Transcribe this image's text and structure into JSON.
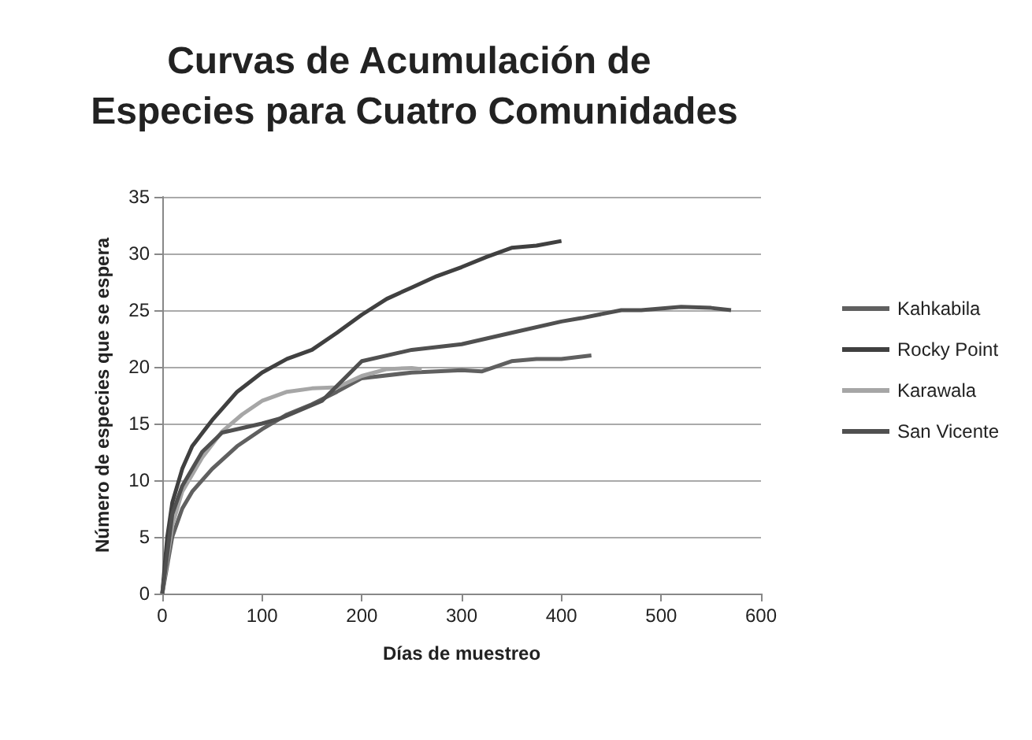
{
  "chart_data": {
    "type": "line",
    "title": "Curvas de Acumulación de Especies para Cuatro Comunidades",
    "xlabel": "Días de muestreo",
    "ylabel": "Número de especies que se espera",
    "xlim": [
      0,
      600
    ],
    "xticks": [
      0,
      100,
      200,
      300,
      400,
      500,
      600
    ],
    "ylim": [
      0,
      35
    ],
    "yticks": [
      0,
      5,
      10,
      15,
      20,
      25,
      30,
      35
    ],
    "grid": "y",
    "legend": "right",
    "marker": "none",
    "line_style": "solid",
    "series": [
      {
        "name": "Kahkabila",
        "color": "#606060",
        "x": [
          0,
          10,
          20,
          30,
          50,
          75,
          100,
          125,
          150,
          175,
          200,
          250,
          300,
          320,
          350,
          375,
          400,
          430
        ],
        "values": [
          0,
          5,
          7.5,
          9,
          11,
          13,
          14.5,
          15.8,
          16.7,
          17.8,
          19,
          19.5,
          19.7,
          19.6,
          20.5,
          20.7,
          20.7,
          21
        ]
      },
      {
        "name": "Rocky Point",
        "color": "#404040",
        "x": [
          0,
          5,
          10,
          20,
          30,
          50,
          75,
          100,
          125,
          150,
          175,
          200,
          225,
          250,
          275,
          300,
          325,
          350,
          375,
          400
        ],
        "values": [
          0,
          5,
          8,
          11,
          13,
          15.3,
          17.8,
          19.5,
          20.7,
          21.5,
          23,
          24.6,
          26,
          27,
          28,
          28.8,
          29.7,
          30.5,
          30.7,
          31.1
        ]
      },
      {
        "name": "Karawala",
        "color": "#a6a6a6",
        "x": [
          0,
          10,
          20,
          40,
          60,
          80,
          100,
          125,
          150,
          175,
          200,
          225,
          250,
          260
        ],
        "values": [
          0,
          6,
          9,
          12,
          14.3,
          15.8,
          17,
          17.8,
          18.1,
          18.2,
          19.2,
          19.8,
          19.9,
          19.8
        ]
      },
      {
        "name": "San Vicente",
        "color": "#505050",
        "x": [
          0,
          10,
          20,
          40,
          60,
          80,
          100,
          120,
          160,
          200,
          250,
          300,
          350,
          400,
          420,
          460,
          480,
          520,
          550,
          570
        ],
        "values": [
          0,
          7,
          9.5,
          12.5,
          14.2,
          14.6,
          15,
          15.5,
          17,
          20.5,
          21.5,
          22,
          23,
          24,
          24.3,
          25,
          25,
          25.3,
          25.2,
          25
        ]
      }
    ]
  }
}
